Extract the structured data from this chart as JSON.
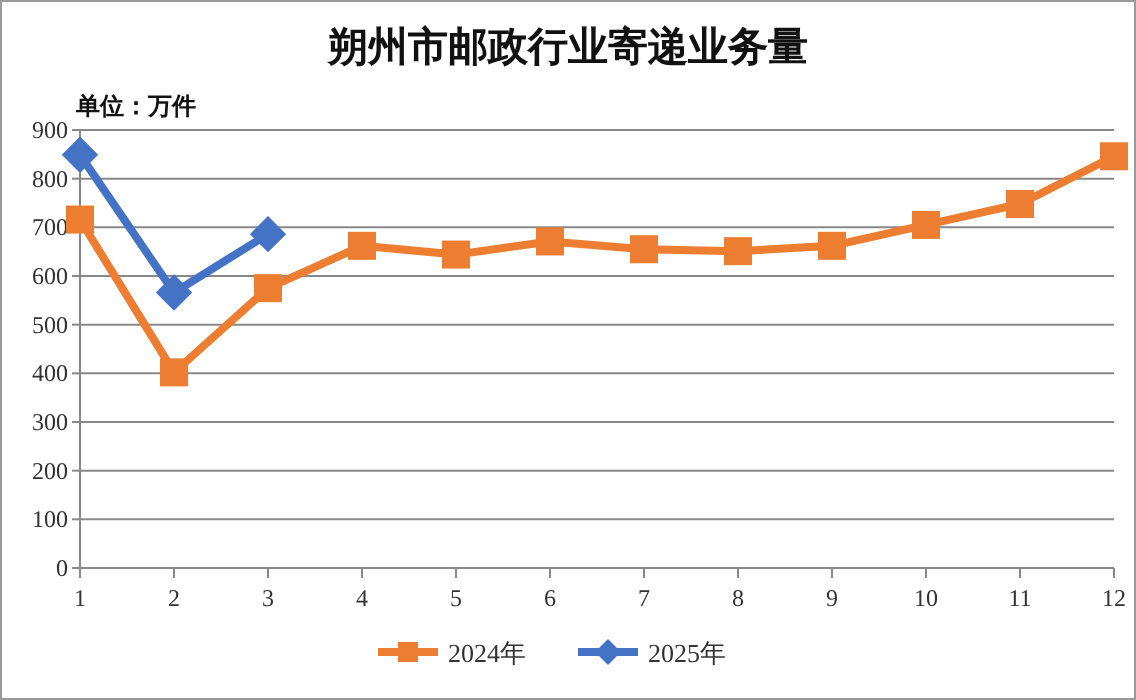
{
  "chart_data": {
    "type": "line",
    "title": "朔州市邮政行业寄递业务量",
    "ylabel": "单位：万件",
    "x": [
      1,
      2,
      3,
      4,
      5,
      6,
      7,
      8,
      9,
      10,
      11,
      12
    ],
    "xlim": [
      1,
      12
    ],
    "xticks": [
      1,
      2,
      3,
      4,
      5,
      6,
      7,
      8,
      9,
      10,
      11,
      12
    ],
    "ylim": [
      0,
      900
    ],
    "yticks": [
      0,
      100,
      200,
      300,
      400,
      500,
      600,
      700,
      800,
      900
    ],
    "grid": "y",
    "legend": "bottom",
    "series": [
      {
        "name": "2024年",
        "color": "#ed7d31",
        "marker": "square",
        "values": [
          716,
          402,
          575,
          662,
          644,
          671,
          655,
          651,
          662,
          705,
          748,
          846
        ]
      },
      {
        "name": "2025年",
        "color": "#4472c4",
        "marker": "diamond",
        "values": [
          849,
          566,
          686,
          null,
          null,
          null,
          null,
          null,
          null,
          null,
          null,
          null
        ]
      }
    ]
  }
}
